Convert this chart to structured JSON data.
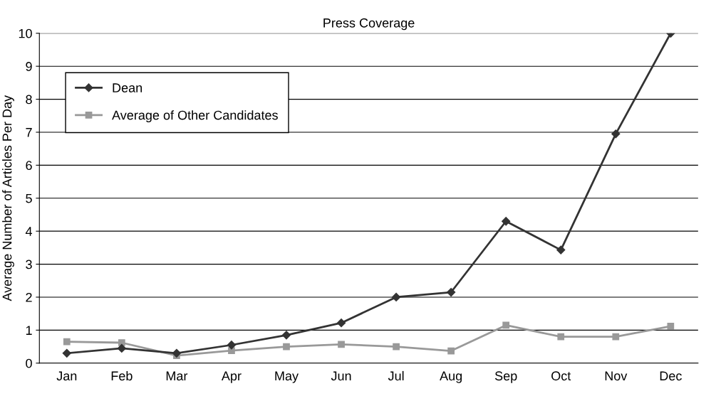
{
  "chart_data": {
    "type": "line",
    "title": "Press Coverage",
    "ylabel": "Average Number of Articles Per Day",
    "categories": [
      "Jan",
      "Feb",
      "Mar",
      "Apr",
      "May",
      "Jun",
      "Jul",
      "Aug",
      "Sep",
      "Oct",
      "Nov",
      "Dec"
    ],
    "series": [
      {
        "name": "Dean",
        "color": "#333333",
        "marker": "diamond",
        "values": [
          0.3,
          0.45,
          0.3,
          0.55,
          0.85,
          1.22,
          2.0,
          2.15,
          4.3,
          3.43,
          6.95,
          10.0
        ]
      },
      {
        "name": "Average of Other Candidates",
        "color": "#999999",
        "marker": "square",
        "values": [
          0.65,
          0.62,
          0.23,
          0.38,
          0.5,
          0.57,
          0.5,
          0.37,
          1.15,
          0.8,
          0.8,
          1.12
        ]
      }
    ],
    "ylim": [
      0,
      10
    ],
    "yticks": [
      0,
      1,
      2,
      3,
      4,
      5,
      6,
      7,
      8,
      9,
      10
    ],
    "grid": "y",
    "legend": "top left",
    "line_style": "solid"
  }
}
